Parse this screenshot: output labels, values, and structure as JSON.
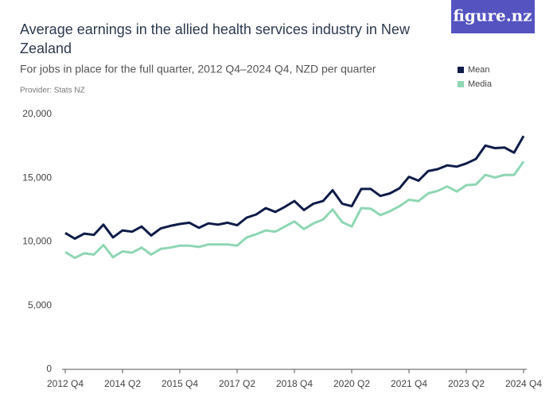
{
  "chart_data": {
    "type": "line",
    "title": "Average earnings in the allied health services industry in New Zealand",
    "subtitle": "For jobs in place for the full quarter, 2012 Q4–2024 Q4, NZD per quarter",
    "provider": "Provider: Stats NZ",
    "logo": "figure.nz",
    "categories": [
      "2012 Q4",
      null,
      null,
      null,
      null,
      null,
      "2014 Q2",
      null,
      null,
      null,
      null,
      null,
      "2015 Q4",
      null,
      null,
      null,
      null,
      null,
      "2017 Q2",
      null,
      null,
      null,
      null,
      null,
      "2018 Q4",
      null,
      null,
      null,
      null,
      null,
      "2020 Q2",
      null,
      null,
      null,
      null,
      null,
      "2021 Q4",
      null,
      null,
      null,
      null,
      null,
      "2023 Q2",
      null,
      null,
      null,
      null,
      null,
      "2024 Q4"
    ],
    "series": [
      {
        "name": "Mean",
        "color": "#0f1c48",
        "values": [
          10700,
          10250,
          10650,
          10550,
          11350,
          10350,
          10900,
          10800,
          11200,
          10500,
          11050,
          11250,
          11400,
          11500,
          11100,
          11450,
          11350,
          11500,
          11300,
          11900,
          12150,
          12650,
          12350,
          12750,
          13200,
          12500,
          13000,
          13200,
          14050,
          13000,
          12800,
          14150,
          14150,
          13600,
          13800,
          14200,
          15100,
          14800,
          15550,
          15700,
          16000,
          15900,
          16150,
          16500,
          17550,
          17350,
          17400,
          17000,
          18300
        ]
      },
      {
        "name": "Media",
        "color": "#8fd6b4",
        "values": [
          9200,
          8750,
          9100,
          9000,
          9750,
          8800,
          9250,
          9150,
          9550,
          9000,
          9450,
          9550,
          9700,
          9700,
          9600,
          9800,
          9800,
          9800,
          9700,
          10350,
          10600,
          10900,
          10800,
          11200,
          11600,
          11000,
          11450,
          11750,
          12550,
          11550,
          11200,
          12650,
          12600,
          12100,
          12400,
          12800,
          13300,
          13200,
          13800,
          14000,
          14350,
          13950,
          14450,
          14500,
          15250,
          15050,
          15250,
          15250,
          16300
        ]
      }
    ],
    "ylim": [
      0,
      20000
    ],
    "yticks": [
      0,
      {
        "value": 5000,
        "label": "5,000"
      },
      {
        "value": 10000,
        "label": "10,000"
      },
      {
        "value": 15000,
        "label": "15,000"
      },
      {
        "value": 20000,
        "label": "20,000"
      }
    ],
    "grid": false,
    "legend": "top-right"
  }
}
